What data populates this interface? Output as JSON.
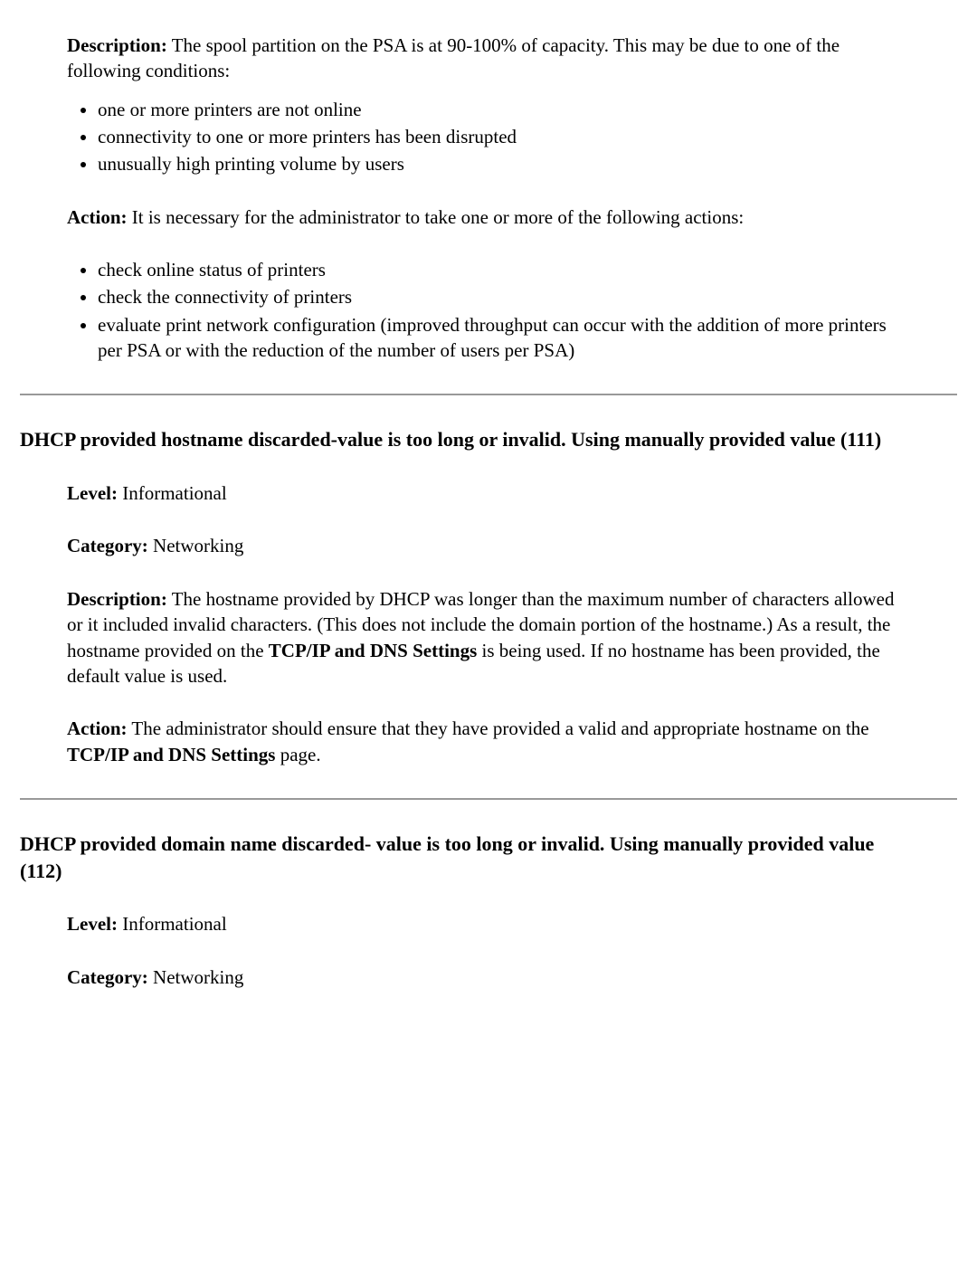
{
  "section1": {
    "description_label": "Description:",
    "description_text": " The spool partition on the PSA is at 90-100% of capacity. This may be due to one of the following conditions:",
    "desc_bullets": [
      "one or more printers are not online",
      "connectivity to one or more printers has been disrupted",
      "unusually high printing volume by users"
    ],
    "action_label": "Action:",
    "action_text": " It is necessary for the administrator to take one or more of the following actions:",
    "action_bullets": [
      "check online status of printers",
      "check the connectivity of printers",
      "evaluate print network configuration (improved throughput can occur with the addition of more printers per PSA or with the reduction of the number of users per PSA)"
    ]
  },
  "section2": {
    "heading": "DHCP provided hostname discarded-value is too long or invalid. Using manually provided value (111)",
    "level_label": "Level:",
    "level_value": " Informational",
    "category_label": "Category:",
    "category_value": " Networking",
    "description_label": "Description:",
    "description_pre": " The hostname provided by DHCP was longer than the maximum number of characters allowed or it included invalid characters. (This does not include the domain portion of the hostname.) As a result, the hostname provided on the ",
    "description_bold": "TCP/IP and DNS Settings",
    "description_post": " is being used. If no hostname has been provided, the default value is used.",
    "action_label": "Action:",
    "action_pre": " The administrator should ensure that they have provided a valid and appropriate hostname on the ",
    "action_bold": "TCP/IP and DNS Settings",
    "action_post": " page."
  },
  "section3": {
    "heading": "DHCP provided domain name discarded- value is too long or invalid. Using manually provided value (112)",
    "level_label": "Level:",
    "level_value": " Informational",
    "category_label": "Category:",
    "category_value": " Networking"
  }
}
